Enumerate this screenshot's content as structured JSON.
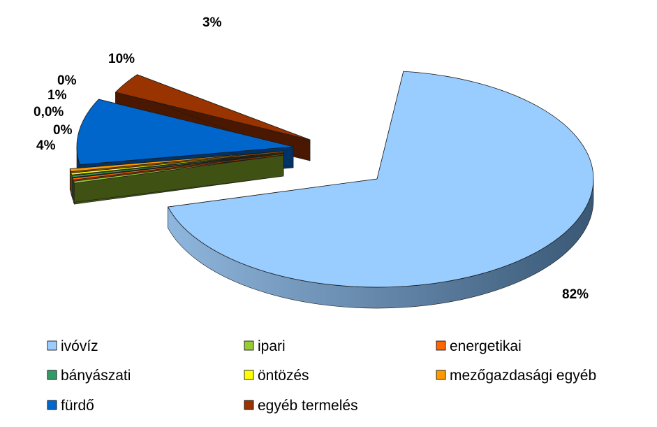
{
  "chart_data": {
    "type": "pie",
    "title": "",
    "categories": [
      "ivóvíz",
      "ipari",
      "energetikai",
      "bányászati",
      "öntözés",
      "mezőgazdasági egyéb",
      "fürdő",
      "egyéb termelés"
    ],
    "values": [
      82,
      4,
      0,
      0.0,
      1,
      0,
      10,
      3
    ],
    "data_labels": [
      "82%",
      "4%",
      "0%",
      "0,0%",
      "1%",
      "0%",
      "10%",
      "3%"
    ],
    "colors": [
      "#99ccff",
      "#99cc33",
      "#ff6600",
      "#339966",
      "#ffff00",
      "#ff9900",
      "#0066cc",
      "#993300"
    ],
    "side_colors": [
      "#3f5f80",
      "#3f5214",
      "#8a3300",
      "#1d5238",
      "#8a8a00",
      "#8a5200",
      "#003366",
      "#4a1800"
    ],
    "exploded": true,
    "three_d": true,
    "legend_position": "bottom"
  }
}
